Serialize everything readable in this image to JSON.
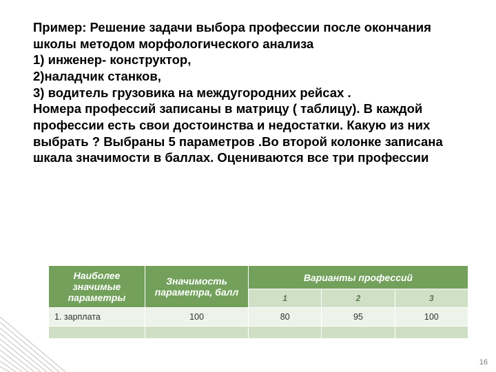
{
  "body_text": "Пример: Решение задачи выбора профессии после окончания школы методом морфологического анализа\n1) инженер- конструктор,\n2)наладчик станков,\n3) водитель грузовика на междугородних рейсах .\nНомера профессий записаны в матрицу ( таблицу). В каждой профессии есть свои достоинства и недостатки. Какую из них выбрать ? Выбраны 5 параметров .Во второй колонке записана шкала значимости в баллах. Оцениваются все три профессии",
  "table": {
    "headers": {
      "col_param": "Наиболее значимые параметры",
      "col_weight": "Значимость параметра, балл",
      "col_variants_group": "Варианты профессий",
      "variants": [
        "1",
        "2",
        "3"
      ]
    },
    "rows": [
      {
        "label": "1. зарплата",
        "weight": "100",
        "v1": "80",
        "v2": "95",
        "v3": "100"
      }
    ]
  },
  "page_number": "16",
  "colors": {
    "header_bg": "#73a05b",
    "header_fg": "#ffffff",
    "sub_bg": "#cfe0c6",
    "sub_fg": "#5b7a4c",
    "cell_bg": "#eef3ea",
    "blank_bg": "#cfdfc5",
    "corner_line": "#bfbfbf"
  }
}
